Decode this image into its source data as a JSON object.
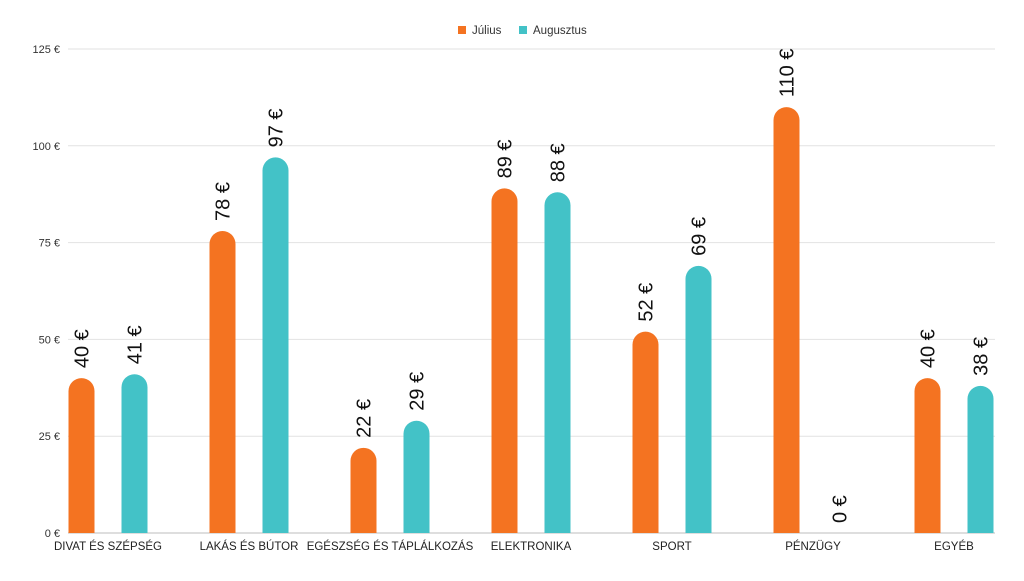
{
  "chart_data": {
    "type": "bar",
    "title": "",
    "xlabel": "",
    "ylabel": "",
    "ylim": [
      0,
      125
    ],
    "yticks": [
      0,
      25,
      50,
      75,
      100,
      125
    ],
    "ytick_labels": [
      "0 €",
      "25 €",
      "50 €",
      "75 €",
      "100 €",
      "125 €"
    ],
    "grid": true,
    "legend_position": "top-center",
    "categories": [
      "DIVAT ÉS SZÉPSÉG",
      "LAKÁS ÉS BÚTOR",
      "EGÉSZSÉG ÉS TÁPLÁLKOZÁS",
      "ELEKTRONIKA",
      "SPORT",
      "PÉNZÜGY",
      "EGYÉB"
    ],
    "series": [
      {
        "name": "Július",
        "color": "#f47321",
        "values": [
          40,
          78,
          22,
          89,
          52,
          110,
          40
        ],
        "labels": [
          "40 €",
          "78 €",
          "22 €",
          "89 €",
          "52 €",
          "110 €",
          "40 €"
        ]
      },
      {
        "name": "Augusztus",
        "color": "#43c2c7",
        "values": [
          41,
          97,
          29,
          88,
          69,
          0,
          38
        ],
        "labels": [
          "41 €",
          "97 €",
          "29 €",
          "88 €",
          "69 €",
          "0 €",
          "38 €"
        ]
      }
    ]
  }
}
